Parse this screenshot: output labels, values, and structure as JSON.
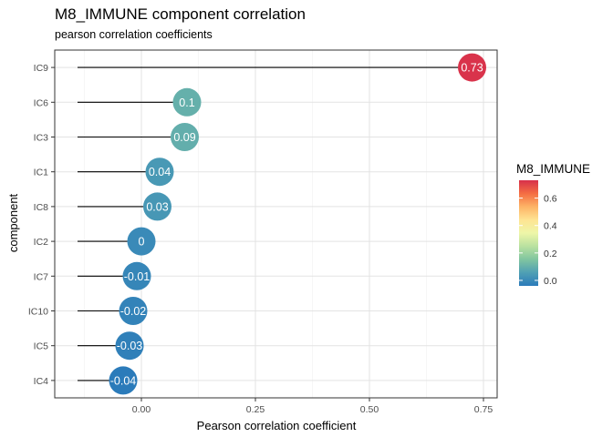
{
  "chart_data": {
    "type": "lollipop",
    "title": "M8_IMMUNE component correlation",
    "subtitle": "pearson correlation coefficients",
    "xlabel": "Pearson correlation coefficient",
    "ylabel": "component",
    "xlim": [
      -0.19,
      0.78
    ],
    "xticks": [
      0.0,
      0.25,
      0.5,
      0.75
    ],
    "xtick_labels": [
      "0.00",
      "0.25",
      "0.50",
      "0.75"
    ],
    "segment_start": -0.14,
    "grid": true,
    "legend": {
      "title": "M8_IMMUNE",
      "placement": "right",
      "ticks": [
        0.0,
        0.2,
        0.4,
        0.6
      ],
      "tick_labels": [
        "0.0",
        "0.2",
        "0.4",
        "0.6"
      ],
      "range": [
        -0.04,
        0.73
      ],
      "colors": [
        "#2b7bba",
        "#4f9fb4",
        "#80c5a0",
        "#b9e1a0",
        "#eef6a8",
        "#fee492",
        "#fdb366",
        "#f46d43",
        "#d7304b"
      ]
    },
    "categories": [
      "IC9",
      "IC6",
      "IC3",
      "IC1",
      "IC8",
      "IC2",
      "IC7",
      "IC10",
      "IC5",
      "IC4"
    ],
    "values": [
      0.725,
      0.1,
      0.095,
      0.04,
      0.035,
      0.0,
      -0.01,
      -0.018,
      -0.026,
      -0.04
    ],
    "labels": [
      "0.73",
      "0.1",
      "0.09",
      "0.04",
      "0.03",
      "0",
      "-0.01",
      "-0.02",
      "-0.03",
      "-0.04"
    ]
  }
}
